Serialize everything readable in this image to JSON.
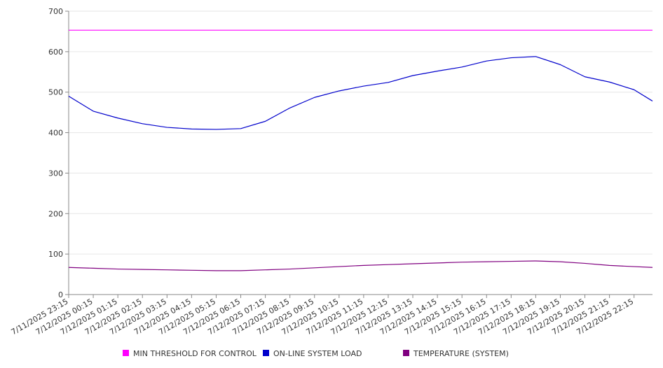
{
  "chart_data": {
    "type": "line",
    "title": "",
    "xlabel": "",
    "ylabel": "",
    "ylim": [
      0,
      700
    ],
    "yticks": [
      "0",
      "100",
      "200",
      "300",
      "400",
      "500",
      "600",
      "700"
    ],
    "categories": [
      "7/11/2025 23:15",
      "7/12/2025 00:15",
      "7/12/2025 01:15",
      "7/12/2025 02:15",
      "7/12/2025 03:15",
      "7/12/2025 04:15",
      "7/12/2025 05:15",
      "7/12/2025 06:15",
      "7/12/2025 07:15",
      "7/12/2025 08:15",
      "7/12/2025 09:15",
      "7/12/2025 10:15",
      "7/12/2025 11:15",
      "7/12/2025 12:15",
      "7/12/2025 13:15",
      "7/12/2025 14:15",
      "7/12/2025 15:15",
      "7/12/2025 16:15",
      "7/12/2025 17:15",
      "7/12/2025 18:15",
      "7/12/2025 19:15",
      "7/12/2025 20:15",
      "7/12/2025 21:15",
      "7/12/2025 22:15"
    ],
    "x_end": "7/12/2025 23:00",
    "grid": true,
    "legend": "bottom",
    "series": [
      {
        "name": "MIN THRESHOLD FOR CONTROL",
        "color": "#ff00ff",
        "x": [
          "7/11/2025 23:15",
          "7/12/2025 23:00"
        ],
        "values": [
          653,
          653
        ]
      },
      {
        "name": "ON-LINE SYSTEM LOAD",
        "color": "#0000cc",
        "x": [
          "7/11/2025 23:15",
          "7/12/2025 00:15",
          "7/12/2025 01:15",
          "7/12/2025 02:15",
          "7/12/2025 03:15",
          "7/12/2025 04:15",
          "7/12/2025 05:15",
          "7/12/2025 06:15",
          "7/12/2025 07:15",
          "7/12/2025 08:15",
          "7/12/2025 09:15",
          "7/12/2025 10:15",
          "7/12/2025 11:15",
          "7/12/2025 12:15",
          "7/12/2025 13:15",
          "7/12/2025 14:15",
          "7/12/2025 15:15",
          "7/12/2025 16:15",
          "7/12/2025 17:15",
          "7/12/2025 18:15",
          "7/12/2025 19:15",
          "7/12/2025 20:15",
          "7/12/2025 21:15",
          "7/12/2025 22:15",
          "7/12/2025 23:00"
        ],
        "values": [
          490,
          453,
          436,
          422,
          413,
          409,
          408,
          410,
          428,
          461,
          487,
          503,
          515,
          524,
          541,
          552,
          562,
          577,
          585,
          588,
          568,
          538,
          525,
          506,
          478
        ]
      },
      {
        "name": "TEMPERATURE (SYSTEM)",
        "color": "#800080",
        "x": [
          "7/11/2025 23:15",
          "7/12/2025 00:15",
          "7/12/2025 01:15",
          "7/12/2025 02:15",
          "7/12/2025 03:15",
          "7/12/2025 04:15",
          "7/12/2025 05:15",
          "7/12/2025 06:15",
          "7/12/2025 07:15",
          "7/12/2025 08:15",
          "7/12/2025 09:15",
          "7/12/2025 10:15",
          "7/12/2025 11:15",
          "7/12/2025 12:15",
          "7/12/2025 13:15",
          "7/12/2025 14:15",
          "7/12/2025 15:15",
          "7/12/2025 16:15",
          "7/12/2025 17:15",
          "7/12/2025 18:15",
          "7/12/2025 19:15",
          "7/12/2025 20:15",
          "7/12/2025 21:15",
          "7/12/2025 22:15",
          "7/12/2025 23:00"
        ],
        "values": [
          67,
          65,
          63,
          62,
          61,
          60,
          59,
          59,
          61,
          63,
          66,
          69,
          72,
          74,
          76,
          78,
          80,
          81,
          82,
          83,
          81,
          77,
          72,
          69,
          67
        ]
      }
    ]
  }
}
